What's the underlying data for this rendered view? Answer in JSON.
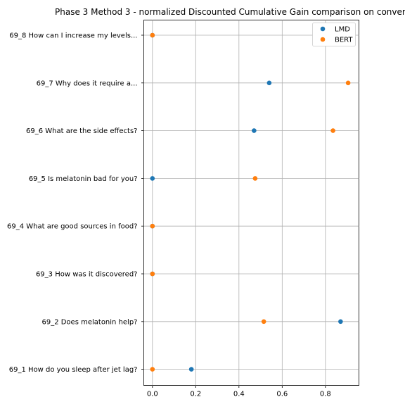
{
  "chart_data": {
    "type": "scatter",
    "title": "Phase 3 Method 3 - normalized Discounted Cumulative Gain comparison on conver",
    "categories": [
      "69_1 How do you sleep after jet lag?",
      "69_2 Does melatonin help?",
      "69_3 How was it discovered?",
      "69_4 What are good sources in food?",
      "69_5 Is melatonin bad for you?",
      "69_6 What are the side effects?",
      "69_7 Why does it require a...",
      "69_8 How can I increase my levels..."
    ],
    "series": [
      {
        "name": "LMD",
        "color": "#1f77b4",
        "values": [
          0.18,
          0.87,
          0.0,
          0.0,
          0.0,
          0.47,
          0.54,
          0.0
        ]
      },
      {
        "name": "BERT",
        "color": "#ff7f0e",
        "values": [
          0.0,
          0.515,
          0.0,
          0.0,
          0.475,
          0.835,
          0.905,
          0.0
        ]
      }
    ],
    "xlabel": "",
    "ylabel": "",
    "xlim": [
      -0.04,
      0.955
    ],
    "xticks": [
      0.0,
      0.2,
      0.4,
      0.6,
      0.8
    ],
    "xtick_labels": [
      "0.0",
      "0.2",
      "0.4",
      "0.6",
      "0.8"
    ],
    "grid": true,
    "legend_position": "top-right"
  }
}
